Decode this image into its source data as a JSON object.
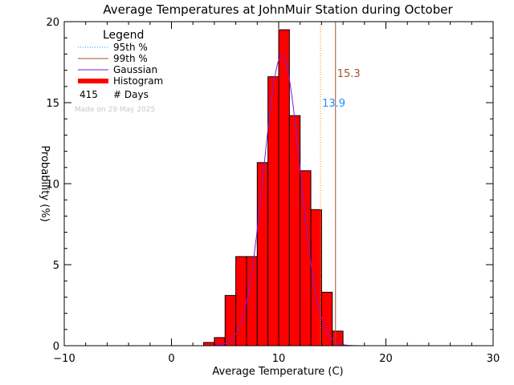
{
  "chart_data": {
    "type": "bar",
    "title": "Average Temperatures at JohnMuir Station during October",
    "xlabel": "Average Temperature (C)",
    "ylabel": "Probability (%)",
    "xlim": [
      -10,
      30
    ],
    "ylim": [
      0,
      20
    ],
    "xticks": [
      -10,
      0,
      10,
      20,
      30
    ],
    "yticks": [
      0,
      5,
      10,
      15,
      20
    ],
    "bin_width": 1,
    "histogram": {
      "bin_starts": [
        3,
        4,
        5,
        6,
        7,
        8,
        9,
        10,
        11,
        12,
        13,
        14,
        15
      ],
      "values": [
        0.2,
        0.5,
        3.1,
        5.5,
        5.5,
        11.3,
        16.6,
        19.5,
        14.2,
        10.8,
        8.4,
        3.3,
        0.9
      ]
    },
    "gaussian": {
      "mean": 10.3,
      "peak": 17.9,
      "sigma": 1.7
    },
    "percentiles": [
      {
        "name": "95th %",
        "value": 13.9,
        "label": "13.9",
        "color": "#ff8c00",
        "text_color": "#1e90ff",
        "style": "dotted"
      },
      {
        "name": "99th %",
        "value": 15.3,
        "label": "15.3",
        "color": "#a0522d",
        "text_color": "#a0522d",
        "style": "solid"
      }
    ],
    "legend": {
      "title": "Legend",
      "placement": "top-left",
      "entries": [
        {
          "label": "95th %",
          "color": "#1e90ff",
          "style": "dotted"
        },
        {
          "label": "99th %",
          "color": "#a0522d",
          "style": "solid"
        },
        {
          "label": "Gaussian",
          "color": "#7b1fd6",
          "style": "solid"
        },
        {
          "label": "Histogram",
          "color": "#ff0000",
          "style": "thick"
        }
      ],
      "days_count": "415",
      "days_label": "# Days"
    },
    "footnote": "Made on 29 May 2025",
    "colors": {
      "bar_fill": "#ff0000",
      "bar_edge": "#000000",
      "gaussian": "#7b1fd6"
    }
  }
}
